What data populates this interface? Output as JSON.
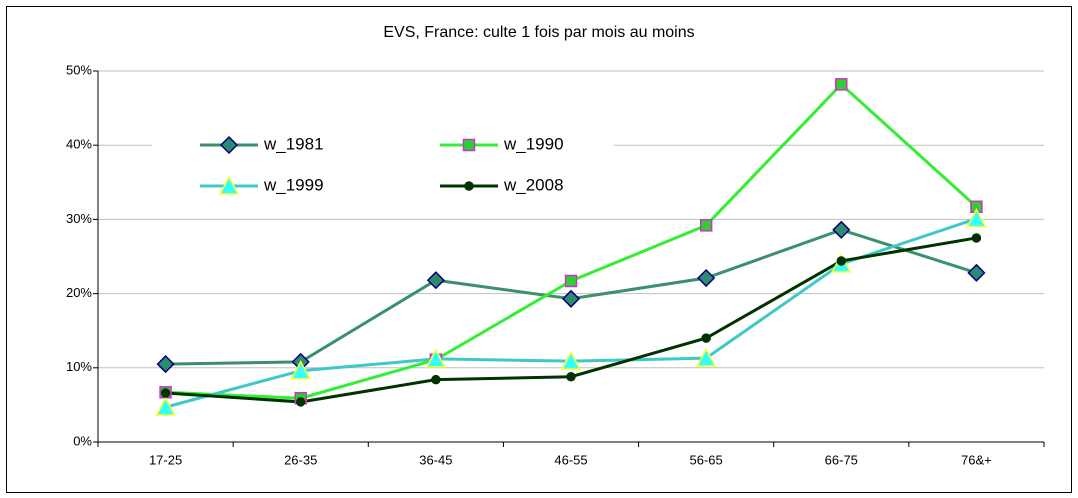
{
  "chart_data": {
    "type": "line",
    "title": "EVS, France: culte 1 fois par  mois au moins",
    "categories": [
      "17-25",
      "26-35",
      "36-45",
      "46-55",
      "56-65",
      "66-75",
      "76&+"
    ],
    "series": [
      {
        "name": "w_1981",
        "color": "#3a8f6e",
        "marker": "diamond",
        "marker_fill": "#2e8b6e",
        "marker_edge": "#000080",
        "values": [
          10.5,
          10.8,
          21.8,
          19.3,
          22.1,
          28.6,
          22.8
        ]
      },
      {
        "name": "w_1990",
        "color": "#33ee33",
        "marker": "square",
        "marker_fill": "#33cc33",
        "marker_edge": "#cc33cc",
        "values": [
          6.7,
          5.9,
          11.1,
          21.7,
          29.2,
          48.2,
          31.7
        ]
      },
      {
        "name": "w_1999",
        "color": "#40c8c8",
        "marker": "triangle",
        "marker_fill": "#33ffff",
        "marker_edge": "#ffff33",
        "values": [
          4.7,
          9.6,
          11.2,
          10.9,
          11.3,
          24.0,
          30.1
        ]
      },
      {
        "name": "w_2008",
        "color": "#003300",
        "marker": "circle",
        "marker_fill": "#003300",
        "marker_edge": "#003300",
        "values": [
          6.6,
          5.4,
          8.4,
          8.8,
          14.0,
          24.4,
          27.5
        ]
      }
    ],
    "ylim": [
      0,
      50
    ],
    "yticks": [
      {
        "value": 0,
        "label": "0%"
      },
      {
        "value": 10,
        "label": "10%"
      },
      {
        "value": 20,
        "label": "20%"
      },
      {
        "value": 30,
        "label": "30%"
      },
      {
        "value": 40,
        "label": "40%"
      },
      {
        "value": 50,
        "label": "50%"
      }
    ],
    "grid": true,
    "legend": "upper left"
  }
}
